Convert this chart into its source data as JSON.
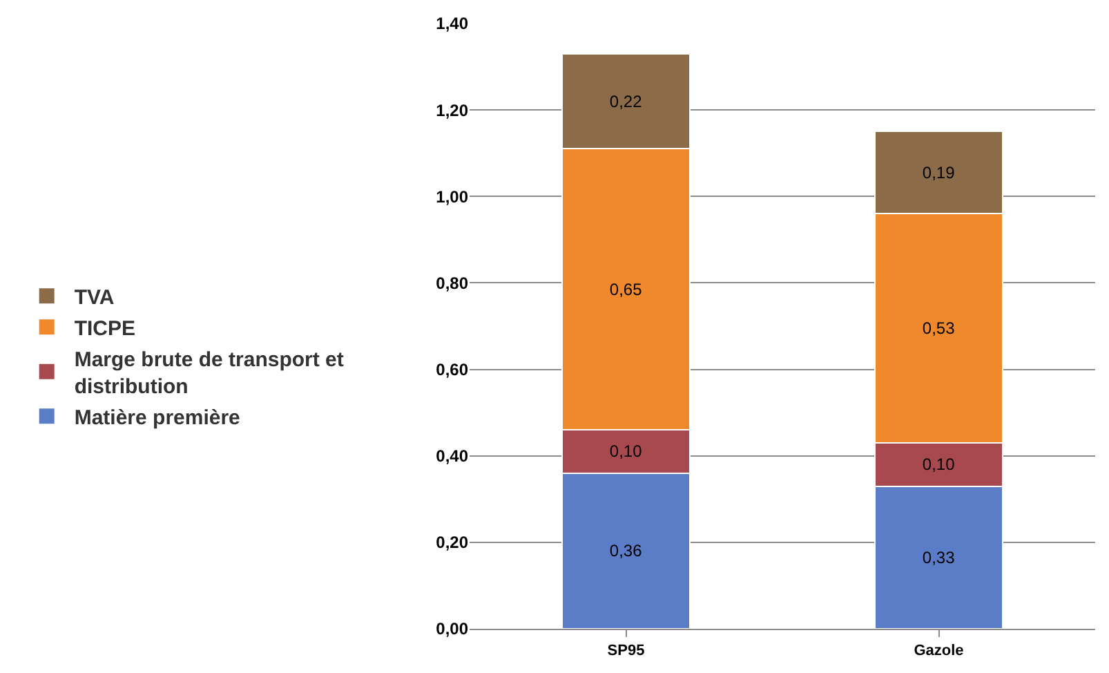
{
  "chart_data": {
    "type": "bar",
    "stacked": true,
    "categories": [
      "SP95",
      "Gazole"
    ],
    "series": [
      {
        "name": "Matière première",
        "color": "#5b7cc6",
        "values": [
          0.36,
          0.33
        ],
        "value_labels": [
          "0,36",
          "0,33"
        ]
      },
      {
        "name": "Marge brute de transport et distribution",
        "color": "#a8494f",
        "values": [
          0.1,
          0.1
        ],
        "value_labels": [
          "0,10",
          "0,10"
        ]
      },
      {
        "name": "TICPE",
        "color": "#f0892c",
        "values": [
          0.65,
          0.53
        ],
        "value_labels": [
          "0,65",
          "0,53"
        ]
      },
      {
        "name": "TVA",
        "color": "#8c6b48",
        "values": [
          0.22,
          0.19
        ],
        "value_labels": [
          "0,22",
          "0,19"
        ]
      }
    ],
    "ylim": [
      0,
      1.4
    ],
    "yticks": [
      {
        "value": 0,
        "label": "0,00"
      },
      {
        "value": 0.2,
        "label": "0,20"
      },
      {
        "value": 0.4,
        "label": "0,40"
      },
      {
        "value": 0.6,
        "label": "0,60"
      },
      {
        "value": 0.8,
        "label": "0,80"
      },
      {
        "value": 1.0,
        "label": "1,00"
      },
      {
        "value": 1.2,
        "label": "1,20"
      },
      {
        "value": 1.4,
        "label": "1,40"
      }
    ],
    "grid": "y",
    "legend": "left"
  }
}
